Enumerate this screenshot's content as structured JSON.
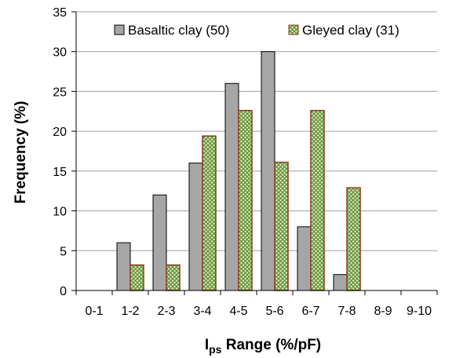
{
  "chart_data": {
    "type": "bar",
    "categories": [
      "0-1",
      "1-2",
      "2-3",
      "3-4",
      "4-5",
      "5-6",
      "6-7",
      "7-8",
      "8-9",
      "9-10"
    ],
    "series": [
      {
        "name": "Basaltic clay (50)",
        "values": [
          0,
          6,
          12,
          16,
          26,
          30,
          8,
          2,
          0,
          0
        ]
      },
      {
        "name": "Gleyed clay (31)",
        "values": [
          0,
          3.2,
          3.2,
          19.4,
          22.6,
          16.1,
          22.6,
          12.9,
          0,
          0
        ]
      }
    ],
    "title": "",
    "xlabel": {
      "main": "I",
      "subscript": "ps",
      "rest": " Range (%/pF)"
    },
    "ylabel": "Frequency (%)",
    "ylim": [
      0,
      35
    ],
    "yticks": [
      0,
      5,
      10,
      15,
      20,
      25,
      30,
      35
    ],
    "grid": "horizontal",
    "legend_position": "top",
    "colors": {
      "basaltic_fill": "#a6a6a6",
      "basaltic_edge": "#000000",
      "gleyed_fill": "#c8dea4",
      "gleyed_pattern": "#6a9a3a",
      "gleyed_edge": "#8b3a1a",
      "gridline": "#a0a0a0"
    }
  }
}
